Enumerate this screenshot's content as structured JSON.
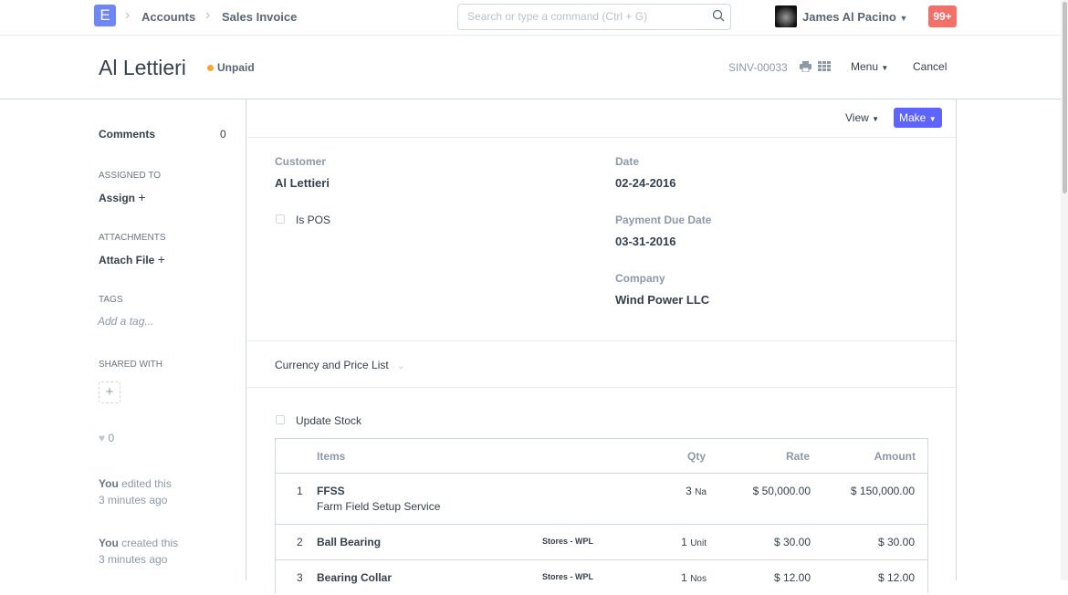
{
  "nav": {
    "logo": "E",
    "breadcrumbs": [
      "Accounts",
      "Sales Invoice"
    ],
    "search_placeholder": "Search or type a command (Ctrl + G)",
    "user": "James Al Pacino",
    "notifications": "99+"
  },
  "head": {
    "title": "Al Lettieri",
    "status": "Unpaid",
    "status_color": "#f8a534",
    "doc_name": "SINV-00033",
    "menu": "Menu",
    "cancel": "Cancel"
  },
  "sidebar": {
    "comments": "Comments",
    "comments_count": "0",
    "assigned_to": "ASSIGNED TO",
    "assign": "Assign",
    "attachments": "ATTACHMENTS",
    "attach": "Attach File",
    "tags": "TAGS",
    "add_tag": "Add a tag...",
    "shared_with": "SHARED WITH",
    "likes": "0",
    "edited_by": "You",
    "edited": " edited this",
    "edited_time": "3 minutes ago",
    "created_by": "You",
    "created": " created this",
    "created_time": "3 minutes ago"
  },
  "form": {
    "view": "View",
    "make": "Make",
    "customer_label": "Customer",
    "customer": "Al Lettieri",
    "is_pos": "Is POS",
    "date_label": "Date",
    "date": "02-24-2016",
    "due_label": "Payment Due Date",
    "due": "03-31-2016",
    "company_label": "Company",
    "company": "Wind Power LLC",
    "currency_section": "Currency and Price List",
    "update_stock": "Update Stock"
  },
  "items": {
    "headers": {
      "items": "Items",
      "qty": "Qty",
      "rate": "Rate",
      "amount": "Amount"
    },
    "rows": [
      {
        "idx": "1",
        "code": "FFSS",
        "desc": "Farm Field Setup Service",
        "warehouse": "",
        "qty": "3",
        "uom": "Na",
        "rate": "$ 50,000.00",
        "amount": "$ 150,000.00"
      },
      {
        "idx": "2",
        "code": "Ball Bearing",
        "desc": "",
        "warehouse": "Stores - WPL",
        "qty": "1",
        "uom": "Unit",
        "rate": "$ 30.00",
        "amount": "$ 30.00"
      },
      {
        "idx": "3",
        "code": "Bearing Collar",
        "desc": "",
        "warehouse": "Stores - WPL",
        "qty": "1",
        "uom": "Nos",
        "rate": "$ 12.00",
        "amount": "$ 12.00"
      }
    ]
  }
}
